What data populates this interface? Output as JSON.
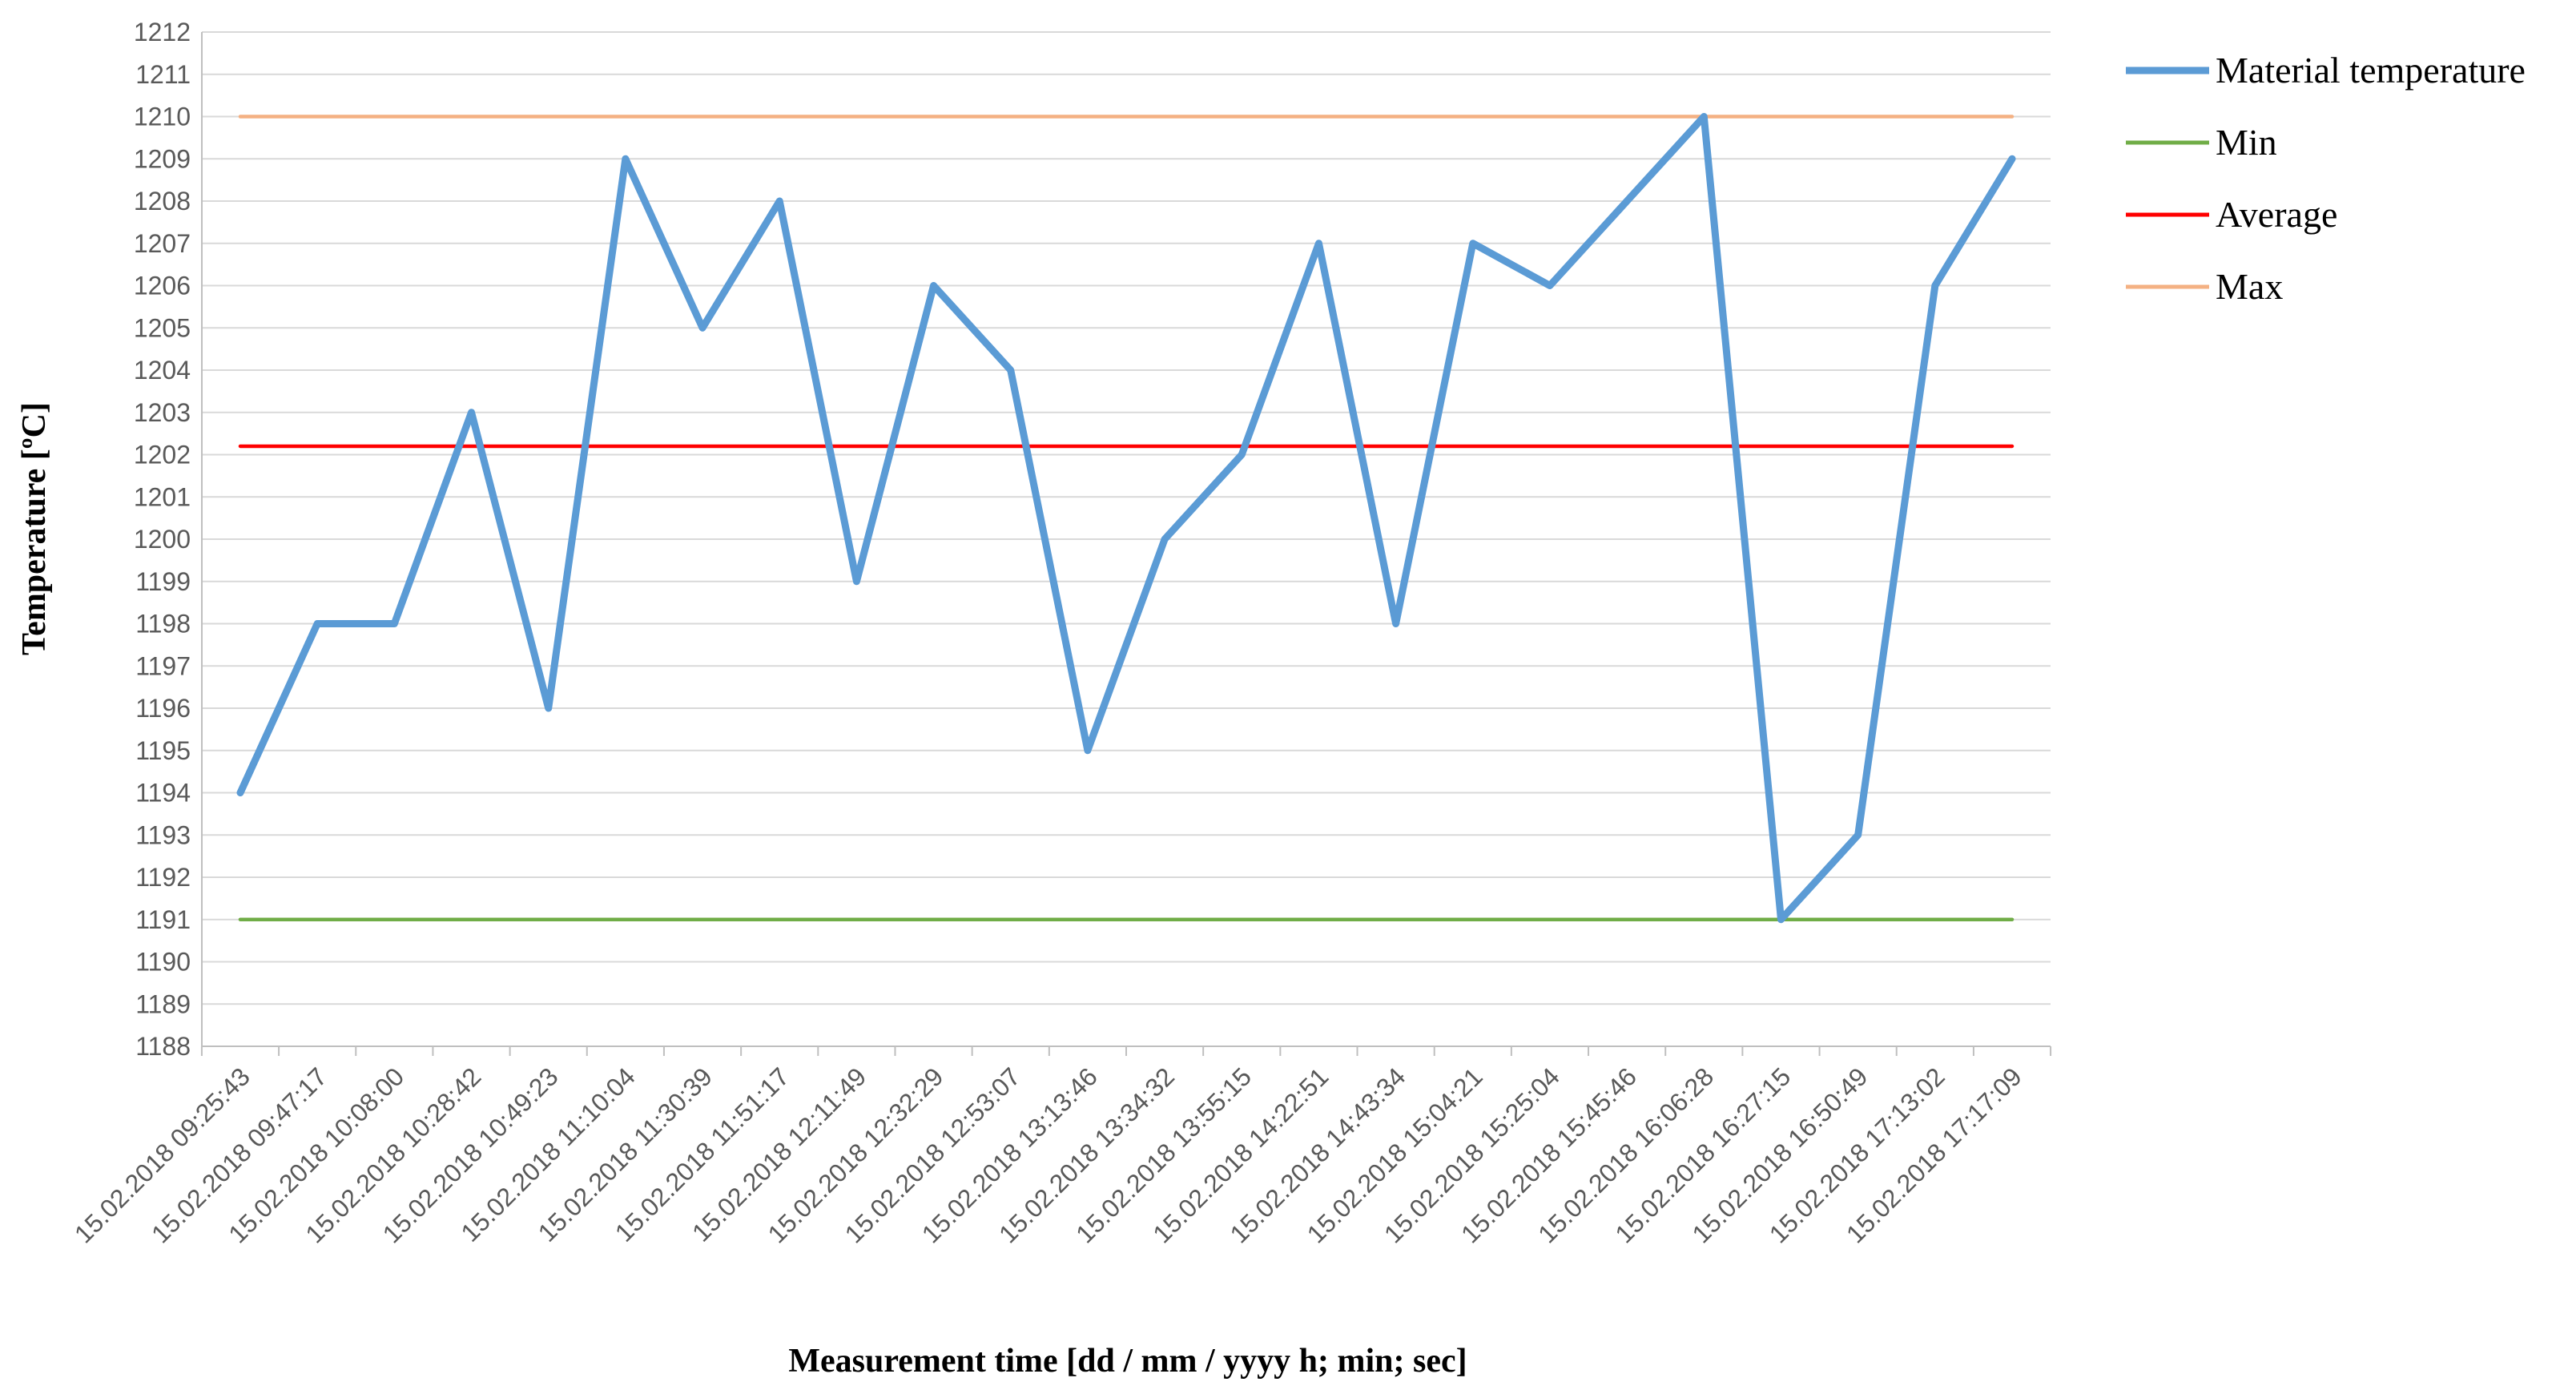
{
  "chart_data": {
    "type": "line",
    "title": "",
    "xlabel": "Measurement time [dd / mm / yyyy h; min; sec]",
    "ylabel": "Temperature [ºC]",
    "ylim": [
      1188,
      1212
    ],
    "ytick_step": 1,
    "grid": true,
    "legend_position": "top-right",
    "categories": [
      "15.02.2018 09:25:43",
      "15.02.2018 09:47:17",
      "15.02.2018 10:08:00",
      "15.02.2018 10:28:42",
      "15.02.2018 10:49:23",
      "15.02.2018 11:10:04",
      "15.02.2018 11:30:39",
      "15.02.2018 11:51:17",
      "15.02.2018 12:11:49",
      "15.02.2018 12:32:29",
      "15.02.2018 12:53:07",
      "15.02.2018 13:13:46",
      "15.02.2018 13:34:32",
      "15.02.2018 13:55:15",
      "15.02.2018 14:22:51",
      "15.02.2018 14:43:34",
      "15.02.2018 15:04:21",
      "15.02.2018 15:25:04",
      "15.02.2018 15:45:46",
      "15.02.2018 16:06:28",
      "15.02.2018 16:27:15",
      "15.02.2018 16:50:49",
      "15.02.2018 17:13:02",
      "15.02.2018 17:17:09"
    ],
    "series": [
      {
        "name": "Material temperature",
        "color": "#5b9bd5",
        "values": [
          1194,
          1198,
          1198,
          1203,
          1196,
          1209,
          1205,
          1208,
          1199,
          1206,
          1204,
          1195,
          1200,
          1202,
          1207,
          1198,
          1207,
          1206,
          1208,
          1210,
          1191,
          1193,
          1206,
          1209
        ]
      },
      {
        "name": "Min",
        "color": "#70ad47",
        "values": [
          1191,
          1191,
          1191,
          1191,
          1191,
          1191,
          1191,
          1191,
          1191,
          1191,
          1191,
          1191,
          1191,
          1191,
          1191,
          1191,
          1191,
          1191,
          1191,
          1191,
          1191,
          1191,
          1191,
          1191
        ]
      },
      {
        "name": "Average",
        "color": "#ff0000",
        "values": [
          1202.2,
          1202.2,
          1202.2,
          1202.2,
          1202.2,
          1202.2,
          1202.2,
          1202.2,
          1202.2,
          1202.2,
          1202.2,
          1202.2,
          1202.2,
          1202.2,
          1202.2,
          1202.2,
          1202.2,
          1202.2,
          1202.2,
          1202.2,
          1202.2,
          1202.2,
          1202.2,
          1202.2
        ]
      },
      {
        "name": "Max",
        "color": "#f4b183",
        "values": [
          1210,
          1210,
          1210,
          1210,
          1210,
          1210,
          1210,
          1210,
          1210,
          1210,
          1210,
          1210,
          1210,
          1210,
          1210,
          1210,
          1210,
          1210,
          1210,
          1210,
          1210,
          1210,
          1210,
          1210
        ]
      }
    ]
  }
}
